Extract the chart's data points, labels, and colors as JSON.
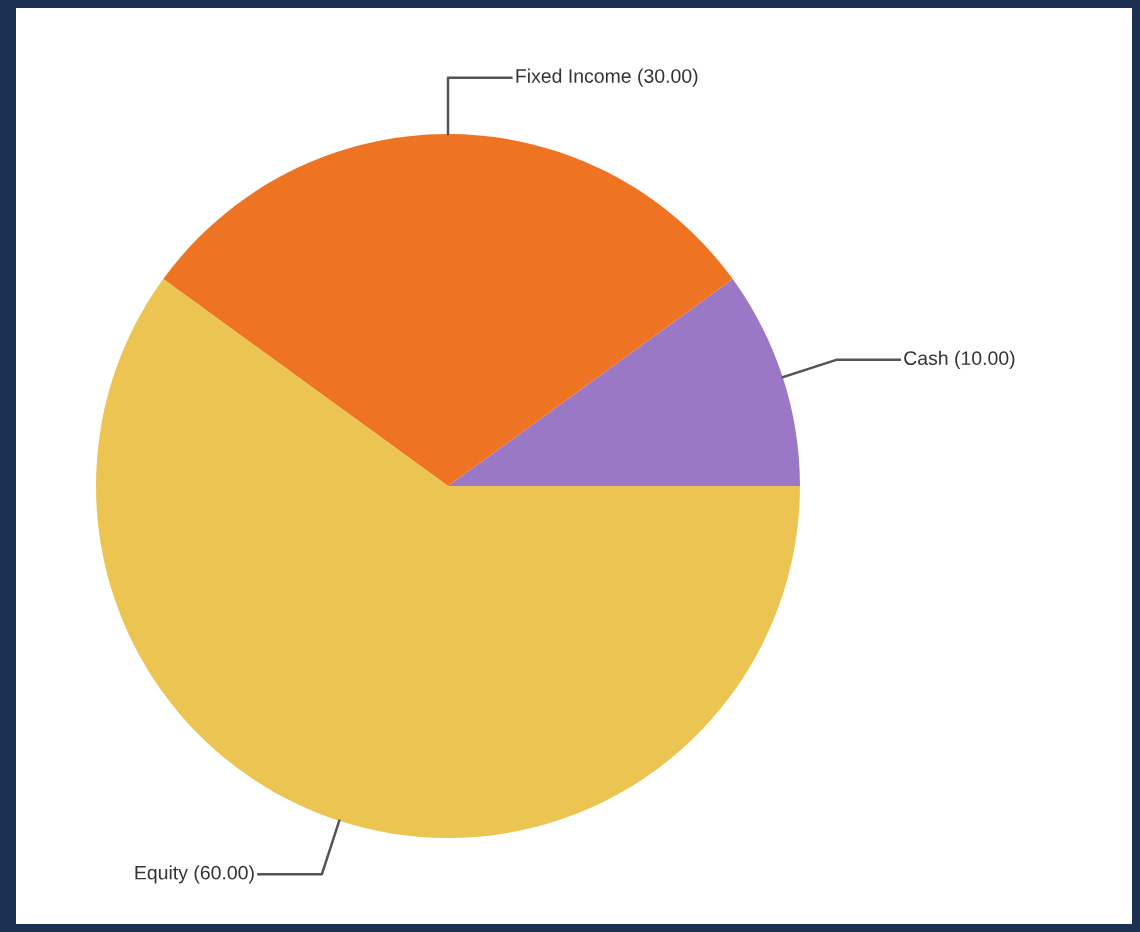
{
  "chart_data": {
    "type": "pie",
    "categories": [
      "Cash",
      "Fixed Income",
      "Equity"
    ],
    "values": [
      10,
      30,
      60
    ],
    "colors": [
      "#9a78c6",
      "#ee7424",
      "#ebc452"
    ],
    "value_labels": [
      "(10.00)",
      "(30.00)",
      "(60.00)"
    ],
    "legend": false
  }
}
